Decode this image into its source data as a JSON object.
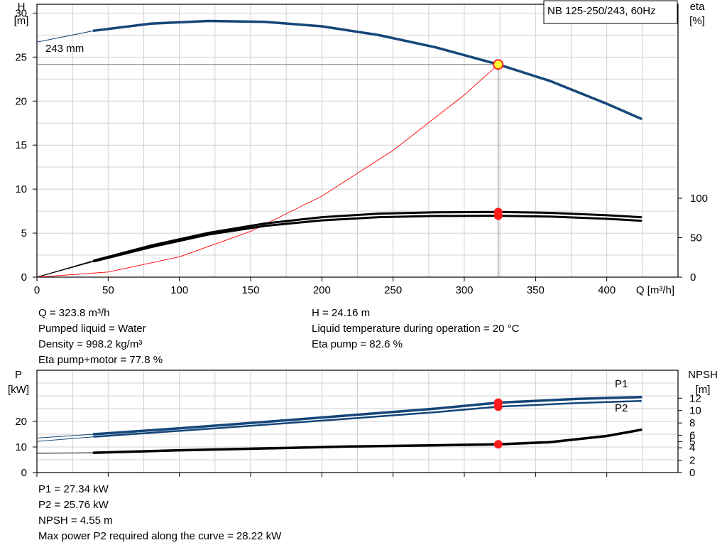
{
  "chart_data": [
    {
      "type": "line",
      "title": "NB 125-250/243, 60Hz",
      "x_axis": {
        "label": "Q [m³/h]",
        "range": [
          0,
          450
        ],
        "ticks": [
          0,
          50,
          100,
          150,
          200,
          250,
          300,
          350,
          400
        ]
      },
      "y_left": {
        "label": "H",
        "unit": "[m]",
        "range": [
          0,
          30
        ],
        "ticks": [
          0,
          5,
          10,
          15,
          20,
          25,
          30
        ]
      },
      "y_right": {
        "label": "eta",
        "unit": "[%]",
        "ticks": [
          0,
          50,
          100
        ]
      },
      "grid": true,
      "curve_label": "243 mm",
      "series": [
        {
          "id": "head",
          "color": "#15467a",
          "x": [
            0,
            40,
            80,
            120,
            160,
            200,
            240,
            280,
            323.8,
            360,
            400,
            424
          ],
          "y": [
            26.7,
            28.0,
            28.8,
            29.1,
            29.0,
            28.5,
            27.5,
            26.1,
            24.16,
            22.3,
            19.7,
            18.0
          ]
        },
        {
          "id": "eta-pump",
          "color": "#000000",
          "x": [
            0,
            40,
            80,
            120,
            160,
            200,
            240,
            280,
            323.8,
            360,
            400,
            424
          ],
          "y": [
            0,
            21,
            40,
            56,
            68,
            76,
            80.5,
            82.2,
            82.6,
            81.5,
            78.5,
            76
          ]
        },
        {
          "id": "eta-pump-motor",
          "color": "#000000",
          "x": [
            0,
            40,
            80,
            120,
            160,
            200,
            240,
            280,
            323.8,
            360,
            400,
            424
          ],
          "y": [
            0,
            20,
            38,
            54,
            65,
            72,
            76,
            77.6,
            77.8,
            76.8,
            74,
            71.5
          ]
        },
        {
          "id": "system-curve",
          "color": "#ff0000",
          "x": [
            0,
            50,
            100,
            150,
            200,
            250,
            300,
            323.8
          ],
          "y": [
            0,
            0.58,
            2.3,
            5.2,
            9.2,
            14.4,
            20.7,
            24.16
          ]
        }
      ],
      "duty_point": {
        "q": 323.8,
        "h": 24.16
      }
    },
    {
      "type": "line",
      "x_axis": {
        "range": [
          0,
          450
        ]
      },
      "y_left": {
        "label": "P",
        "unit": "[kW]",
        "range": [
          0,
          30
        ],
        "ticks": [
          0,
          10,
          20
        ]
      },
      "y_right": {
        "label": "NPSH",
        "unit": "[m]",
        "range": [
          0,
          16
        ],
        "ticks": [
          0,
          2,
          4,
          5,
          6,
          8,
          10,
          12
        ]
      },
      "grid": true,
      "series": [
        {
          "id": "p1",
          "name": "P1",
          "color": "#15467a",
          "x": [
            0,
            40,
            100,
            160,
            220,
            280,
            323.8,
            380,
            424
          ],
          "y": [
            13.5,
            15.0,
            17.3,
            19.8,
            22.4,
            25.0,
            27.34,
            28.8,
            29.5
          ]
        },
        {
          "id": "p2",
          "name": "P2",
          "color": "#15467a",
          "x": [
            0,
            40,
            100,
            160,
            220,
            280,
            323.8,
            380,
            424
          ],
          "y": [
            12.2,
            14.0,
            16.3,
            18.7,
            21.1,
            23.6,
            25.76,
            27.2,
            28.0
          ]
        },
        {
          "id": "npsh",
          "color": "#000000",
          "x": [
            0,
            40,
            100,
            160,
            220,
            280,
            323.8,
            360,
            400,
            424
          ],
          "y": [
            3.1,
            3.2,
            3.6,
            3.9,
            4.2,
            4.4,
            4.55,
            4.9,
            5.9,
            6.9
          ]
        }
      ],
      "duty_point": {
        "q": 323.8,
        "p1": 27.34,
        "p2": 25.76,
        "npsh": 4.55
      }
    }
  ],
  "info_top": {
    "q": "Q = 323.8 m³/h",
    "liquid": "Pumped liquid = Water",
    "density": "Density = 998.2 kg/m³",
    "eta_pm": "Eta pump+motor = 77.8 %",
    "h": "H = 24.16 m",
    "temp": "Liquid temperature during operation = 20 °C",
    "eta_p": "Eta pump = 82.6 %"
  },
  "info_bottom": {
    "p1": "P1 = 27.34 kW",
    "p2": "P2 = 25.76 kW",
    "npsh": "NPSH = 4.55 m",
    "max_p2": "Max power P2 required along the curve = 28.22 kW"
  }
}
